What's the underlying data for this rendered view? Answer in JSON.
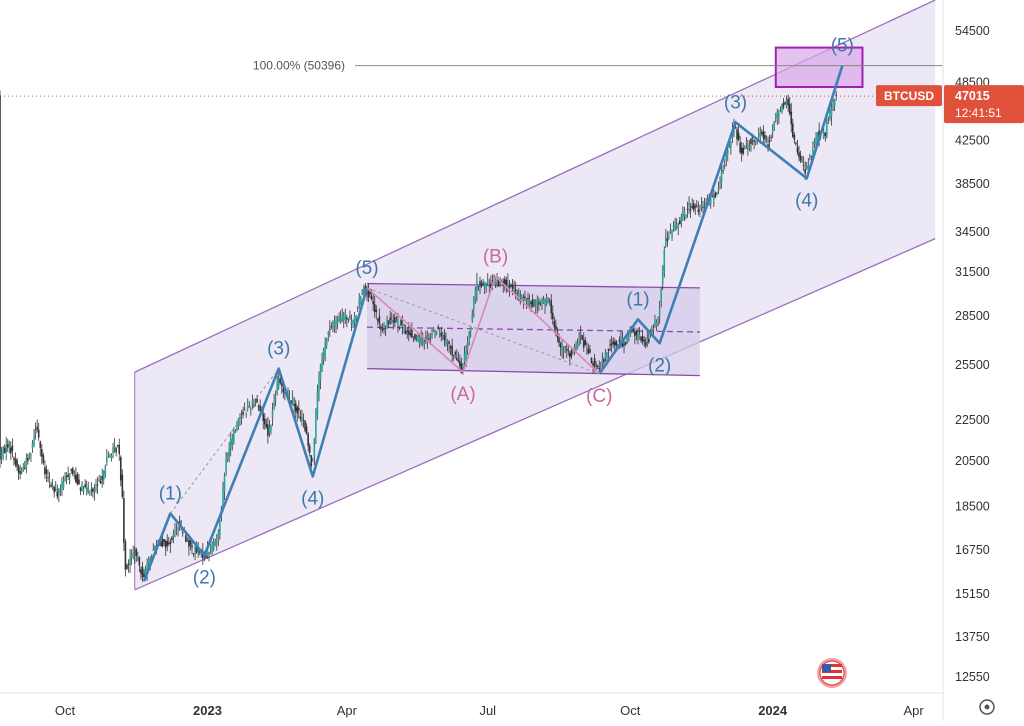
{
  "chart_data": {
    "type": "candlestick",
    "symbol": "BTCUSD",
    "last_price": "47015",
    "countdown": "12:41:51",
    "scale": "log",
    "y_ticks": [
      12550,
      13750,
      15150,
      16750,
      18500,
      20500,
      22500,
      25500,
      28500,
      31500,
      34500,
      38500,
      42500,
      48500,
      54500
    ],
    "x_ticks": [
      {
        "label": "Oct",
        "date": "2022-10-01"
      },
      {
        "label": "2023",
        "date": "2023-01-01"
      },
      {
        "label": "Apr",
        "date": "2023-04-01"
      },
      {
        "label": "Jul",
        "date": "2023-07-01"
      },
      {
        "label": "Oct",
        "date": "2023-10-01"
      },
      {
        "label": "2024",
        "date": "2024-01-01"
      },
      {
        "label": "Apr",
        "date": "2024-04-01"
      }
    ],
    "x_range": [
      "2022-08-20",
      "2024-04-20"
    ],
    "y_range": [
      12100,
      58500
    ],
    "fib_label": "100.00% (50396)",
    "fib_price": 50396,
    "price_path": [
      [
        "2022-08-20",
        20600
      ],
      [
        "2022-08-26",
        21400
      ],
      [
        "2022-09-02",
        19900
      ],
      [
        "2022-09-09",
        20800
      ],
      [
        "2022-09-13",
        22400
      ],
      [
        "2022-09-18",
        20000
      ],
      [
        "2022-09-26",
        19000
      ],
      [
        "2022-10-05",
        20100
      ],
      [
        "2022-10-12",
        19300
      ],
      [
        "2022-10-20",
        19100
      ],
      [
        "2022-10-25",
        19700
      ],
      [
        "2022-10-29",
        20700
      ],
      [
        "2022-11-05",
        21200
      ],
      [
        "2022-11-08",
        18500
      ],
      [
        "2022-11-09",
        16000
      ],
      [
        "2022-11-15",
        16700
      ],
      [
        "2022-11-21",
        15800
      ],
      [
        "2022-11-30",
        17100
      ],
      [
        "2022-12-07",
        16900
      ],
      [
        "2022-12-14",
        17800
      ],
      [
        "2022-12-22",
        16800
      ],
      [
        "2022-12-31",
        16550
      ],
      [
        "2023-01-08",
        17200
      ],
      [
        "2023-01-14",
        20800
      ],
      [
        "2023-01-22",
        22700
      ],
      [
        "2023-02-02",
        23600
      ],
      [
        "2023-02-10",
        21800
      ],
      [
        "2023-02-16",
        24600
      ],
      [
        "2023-02-26",
        23400
      ],
      [
        "2023-03-05",
        22300
      ],
      [
        "2023-03-10",
        20200
      ],
      [
        "2023-03-14",
        24600
      ],
      [
        "2023-03-20",
        27500
      ],
      [
        "2023-03-26",
        28200
      ],
      [
        "2023-03-31",
        28500
      ],
      [
        "2023-04-06",
        28100
      ],
      [
        "2023-04-11",
        30200
      ],
      [
        "2023-04-14",
        30400
      ],
      [
        "2023-04-19",
        29000
      ],
      [
        "2023-04-24",
        27500
      ],
      [
        "2023-05-01",
        28500
      ],
      [
        "2023-05-10",
        27500
      ],
      [
        "2023-05-20",
        26900
      ],
      [
        "2023-05-30",
        27700
      ],
      [
        "2023-06-08",
        26400
      ],
      [
        "2023-06-15",
        25200
      ],
      [
        "2023-06-21",
        28300
      ],
      [
        "2023-06-24",
        30600
      ],
      [
        "2023-07-04",
        30700
      ],
      [
        "2023-07-12",
        30900
      ],
      [
        "2023-07-20",
        29900
      ],
      [
        "2023-07-30",
        29300
      ],
      [
        "2023-08-10",
        29500
      ],
      [
        "2023-08-17",
        26600
      ],
      [
        "2023-08-25",
        26100
      ],
      [
        "2023-08-30",
        27300
      ],
      [
        "2023-09-06",
        25900
      ],
      [
        "2023-09-11",
        25100
      ],
      [
        "2023-09-18",
        26700
      ],
      [
        "2023-09-28",
        26900
      ],
      [
        "2023-10-02",
        27600
      ],
      [
        "2023-10-12",
        26800
      ],
      [
        "2023-10-20",
        28600
      ],
      [
        "2023-10-24",
        33900
      ],
      [
        "2023-11-01",
        35200
      ],
      [
        "2023-11-09",
        36700
      ],
      [
        "2023-11-16",
        36300
      ],
      [
        "2023-11-26",
        37700
      ],
      [
        "2023-12-04",
        41900
      ],
      [
        "2023-12-08",
        44000
      ],
      [
        "2023-12-12",
        41400
      ],
      [
        "2023-12-18",
        42400
      ],
      [
        "2023-12-25",
        43200
      ],
      [
        "2023-12-30",
        42100
      ],
      [
        "2024-01-03",
        44900
      ],
      [
        "2024-01-11",
        46600
      ],
      [
        "2024-01-15",
        42600
      ],
      [
        "2024-01-23",
        39500
      ],
      [
        "2024-01-30",
        43200
      ],
      [
        "2024-02-04",
        43000
      ],
      [
        "2024-02-08",
        45300
      ],
      [
        "2024-02-11",
        47015
      ]
    ],
    "elliott_waves": {
      "impulse_blue": [
        [
          "2022-11-21",
          15600
        ],
        [
          "2022-12-08",
          18200
        ],
        [
          "2022-12-30",
          16550
        ],
        [
          "2023-02-16",
          25300
        ],
        [
          "2023-03-10",
          19800
        ],
        [
          "2023-04-14",
          30400
        ],
        [
          "2023-09-11",
          25000
        ],
        [
          "2023-10-06",
          28300
        ],
        [
          "2023-10-20",
          26800
        ],
        [
          "2023-12-08",
          44300
        ],
        [
          "2024-01-23",
          39000
        ],
        [
          "2024-02-15",
          50396
        ]
      ],
      "correction_pink": [
        [
          "2023-04-14",
          30400
        ],
        [
          "2023-06-15",
          25100
        ],
        [
          "2023-07-06",
          31200
        ],
        [
          "2023-09-11",
          25000
        ]
      ]
    },
    "wave_labels": [
      {
        "text": "(1)",
        "date": "2022-12-08",
        "price": 18200,
        "color": "#3d78a8",
        "pos": "above"
      },
      {
        "text": "(2)",
        "date": "2022-12-30",
        "price": 16550,
        "color": "#3d78a8",
        "pos": "below"
      },
      {
        "text": "(3)",
        "date": "2023-02-16",
        "price": 25300,
        "color": "#3d78a8",
        "pos": "above"
      },
      {
        "text": "(4)",
        "date": "2023-03-10",
        "price": 19800,
        "color": "#3d78a8",
        "pos": "below"
      },
      {
        "text": "(5)",
        "date": "2023-04-14",
        "price": 30400,
        "color": "#3d78a8",
        "pos": "above"
      },
      {
        "text": "(A)",
        "date": "2023-06-15",
        "price": 25100,
        "color": "#c76b98",
        "pos": "below"
      },
      {
        "text": "(B)",
        "date": "2023-07-06",
        "price": 31200,
        "color": "#c76b98",
        "pos": "above"
      },
      {
        "text": "(C)",
        "date": "2023-09-11",
        "price": 25000,
        "color": "#c76b98",
        "pos": "below"
      },
      {
        "text": "(1)",
        "date": "2023-10-06",
        "price": 28300,
        "color": "#3d78a8",
        "pos": "above"
      },
      {
        "text": "(2)",
        "date": "2023-10-20",
        "price": 26800,
        "color": "#3d78a8",
        "pos": "below"
      },
      {
        "text": "(3)",
        "date": "2023-12-08",
        "price": 44300,
        "color": "#3d78a8",
        "pos": "above"
      },
      {
        "text": "(4)",
        "date": "2024-01-23",
        "price": 39000,
        "color": "#3d78a8",
        "pos": "below"
      },
      {
        "text": "(5)",
        "date": "2024-02-15",
        "price": 50396,
        "color": "#3d78a8",
        "pos": "above"
      }
    ],
    "main_channel": {
      "upper": [
        [
          "2022-11-15",
          25100
        ],
        [
          "2024-04-15",
          58500
        ]
      ],
      "lower": [
        [
          "2022-11-15",
          15300
        ],
        [
          "2024-04-15",
          34000
        ]
      ]
    },
    "range_box": {
      "top": [
        [
          "2023-04-14",
          30700
        ],
        [
          "2023-11-15",
          30400
        ]
      ],
      "bottom": [
        [
          "2023-04-14",
          25300
        ],
        [
          "2023-11-15",
          24900
        ]
      ],
      "mid": [
        [
          "2023-04-14",
          27800
        ],
        [
          "2023-11-15",
          27500
        ]
      ]
    },
    "target_zone": {
      "x0": "2024-01-03",
      "x1": "2024-02-28",
      "y0": 48000,
      "y1": 52500
    },
    "colors": {
      "up": "#26a69a",
      "wick": "#333333",
      "impulse": "#3f7fb5",
      "correction": "#d88ab2",
      "channel_fill": "#e6e0f2",
      "channel_line": "#9c6fbd",
      "box_fill": "#d5cbe9",
      "box_line": "#8e4aa8",
      "target_fill": "#d9a8e8",
      "target_line": "#a020b0",
      "price_tag": "#e0513b"
    }
  }
}
